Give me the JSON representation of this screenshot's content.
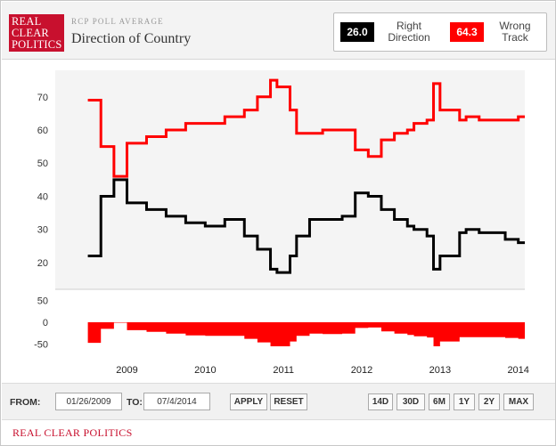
{
  "header": {
    "logo_lines": [
      "REAL",
      "CLEAR",
      "POLITICS"
    ],
    "kicker": "RCP POLL AVERAGE",
    "title": "Direction of Country"
  },
  "legend": {
    "right_value": "26.0",
    "right_label": "Right Direction",
    "wrong_value": "64.3",
    "wrong_label": "Wrong Track",
    "right_color": "#000000",
    "wrong_color": "#ff0000"
  },
  "controls": {
    "from_label": "FROM:",
    "from_value": "01/26/2009",
    "to_label": "TO:",
    "to_value": "07/4/2014",
    "apply_label": "APPLY",
    "reset_label": "RESET",
    "ranges": [
      "14D",
      "30D",
      "6M",
      "1Y",
      "2Y",
      "MAX"
    ]
  },
  "source": "REAL CLEAR POLITICS",
  "chart_data": {
    "type": "line",
    "title": "Direction of Country",
    "x_ticks": [
      "2009",
      "2010",
      "2011",
      "2012",
      "2013",
      "2014"
    ],
    "upper": {
      "y_ticks": [
        20,
        30,
        40,
        50,
        60,
        70
      ],
      "ylim": [
        13,
        78
      ],
      "x": [
        "2009-01",
        "2009-03",
        "2009-05",
        "2009-07",
        "2009-10",
        "2010-01",
        "2010-04",
        "2010-07",
        "2010-10",
        "2011-01",
        "2011-03",
        "2011-05",
        "2011-06",
        "2011-08",
        "2011-09",
        "2011-11",
        "2012-01",
        "2012-04",
        "2012-06",
        "2012-08",
        "2012-10",
        "2012-12",
        "2013-02",
        "2013-03",
        "2013-05",
        "2013-06",
        "2013-07",
        "2013-10",
        "2013-11",
        "2014-01",
        "2014-03",
        "2014-05",
        "2014-07"
      ],
      "series": [
        {
          "name": "Right Direction",
          "color": "#000000",
          "values": [
            22,
            40,
            45,
            38,
            36,
            34,
            32,
            31,
            33,
            28,
            24,
            18,
            17,
            22,
            28,
            33,
            33,
            34,
            41,
            40,
            36,
            33,
            31,
            30,
            28,
            18,
            22,
            29,
            30,
            29,
            29,
            27,
            26
          ]
        },
        {
          "name": "Wrong Track",
          "color": "#ff0000",
          "values": [
            69,
            55,
            46,
            56,
            58,
            60,
            62,
            62,
            64,
            66,
            70,
            75,
            73,
            66,
            59,
            59,
            60,
            60,
            54,
            52,
            57,
            59,
            60,
            62,
            63,
            74,
            66,
            63,
            64,
            63,
            63,
            63,
            64
          ]
        }
      ]
    },
    "lower": {
      "y_ticks": [
        50,
        0,
        -50
      ],
      "ylim": [
        -55,
        55
      ],
      "series": [
        {
          "name": "Right Direction minus Wrong Track",
          "color": "#ff0000",
          "values": [
            -47,
            -15,
            -1,
            -18,
            -22,
            -26,
            -30,
            -31,
            -31,
            -38,
            -46,
            -57,
            -56,
            -44,
            -31,
            -26,
            -27,
            -26,
            -13,
            -12,
            -21,
            -26,
            -29,
            -32,
            -35,
            -56,
            -44,
            -34,
            -34,
            -34,
            -34,
            -36,
            -38
          ]
        }
      ]
    }
  }
}
